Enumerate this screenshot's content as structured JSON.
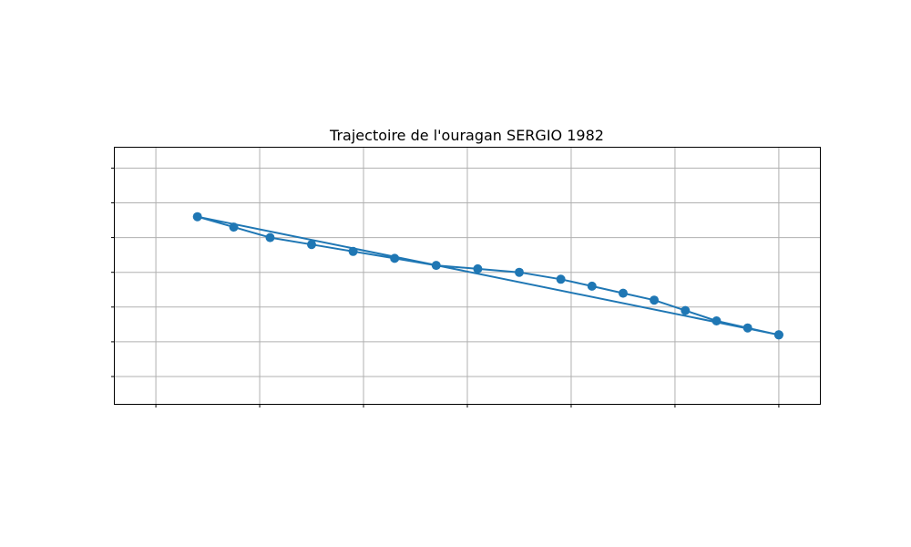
{
  "chart_data": {
    "type": "line",
    "title": "Trajectoire de l'ouragan SERGIO 1982",
    "xlabel": "",
    "ylabel": "",
    "xlim": [
      -0.4,
      6.4
    ],
    "ylim": [
      -0.8,
      6.6
    ],
    "x_gridlines": [
      0,
      1,
      2,
      3,
      4,
      5,
      6
    ],
    "y_gridlines": [
      0,
      1,
      2,
      3,
      4,
      5,
      6
    ],
    "grid": true,
    "series": [
      {
        "color": "#1f77b4",
        "marker": "circle",
        "points": [
          {
            "x": 6.0,
            "y": 1.2
          },
          {
            "x": 5.7,
            "y": 1.4
          },
          {
            "x": 5.4,
            "y": 1.6
          },
          {
            "x": 5.1,
            "y": 1.9
          },
          {
            "x": 4.8,
            "y": 2.2
          },
          {
            "x": 4.5,
            "y": 2.4
          },
          {
            "x": 4.2,
            "y": 2.6
          },
          {
            "x": 3.9,
            "y": 2.8
          },
          {
            "x": 3.5,
            "y": 3.0
          },
          {
            "x": 3.1,
            "y": 3.1
          },
          {
            "x": 2.7,
            "y": 3.2
          },
          {
            "x": 2.3,
            "y": 3.4
          },
          {
            "x": 1.9,
            "y": 3.6
          },
          {
            "x": 1.5,
            "y": 3.8
          },
          {
            "x": 1.1,
            "y": 4.0
          },
          {
            "x": 0.75,
            "y": 4.3
          },
          {
            "x": 0.4,
            "y": 4.6
          },
          {
            "x": 6.0,
            "y": 1.2
          }
        ]
      }
    ]
  }
}
